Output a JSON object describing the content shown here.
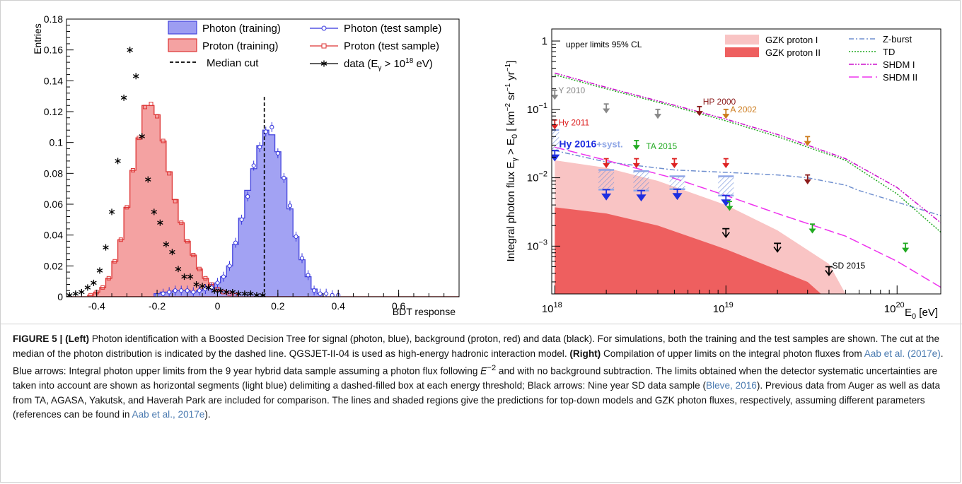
{
  "left_chart": {
    "chart_data": {
      "type": "bar",
      "xlabel": "BDT response",
      "ylabel": "Entries",
      "xlim": [
        -0.5,
        0.8
      ],
      "ylim": [
        0,
        0.18
      ],
      "x_ticks": [
        "-0.4",
        "-0.2",
        "0",
        "0.2",
        "0.4",
        "0.6"
      ],
      "y_ticks": [
        "0",
        "0.02",
        "0.04",
        "0.06",
        "0.08",
        "0.1",
        "0.12",
        "0.14",
        "0.16",
        "0.18"
      ],
      "median_cut_x": 0.155,
      "series": [
        {
          "name": "Photon (training)",
          "color": "#4444dd",
          "fill": "#9d9df2",
          "x": [
            -0.2,
            -0.18,
            -0.16,
            -0.14,
            -0.12,
            -0.1,
            -0.08,
            -0.06,
            -0.04,
            -0.02,
            0,
            0.02,
            0.04,
            0.06,
            0.08,
            0.1,
            0.12,
            0.14,
            0.16,
            0.18,
            0.2,
            0.22,
            0.24,
            0.26,
            0.28,
            0.3,
            0.32,
            0.34
          ],
          "values": [
            0.002,
            0.003,
            0.003,
            0.004,
            0.004,
            0.004,
            0.003,
            0.004,
            0.005,
            0.006,
            0.009,
            0.013,
            0.02,
            0.034,
            0.051,
            0.069,
            0.083,
            0.098,
            0.108,
            0.105,
            0.094,
            0.077,
            0.057,
            0.039,
            0.024,
            0.013,
            0.005,
            0.002
          ]
        },
        {
          "name": "Photon (test sample)",
          "color": "#3333dd",
          "x": [
            -0.2,
            -0.18,
            -0.16,
            -0.14,
            -0.12,
            -0.1,
            -0.08,
            -0.06,
            -0.04,
            -0.02,
            0,
            0.02,
            0.04,
            0.06,
            0.08,
            0.1,
            0.12,
            0.14,
            0.16,
            0.18,
            0.2,
            0.22,
            0.24,
            0.26,
            0.28,
            0.3,
            0.32,
            0.34,
            0.36,
            0.38,
            0.4
          ],
          "values": [
            0.001,
            0.002,
            0.003,
            0.004,
            0.004,
            0.004,
            0.003,
            0.004,
            0.005,
            0.006,
            0.009,
            0.013,
            0.02,
            0.035,
            0.05,
            0.065,
            0.085,
            0.097,
            0.107,
            0.11,
            0.093,
            0.077,
            0.059,
            0.039,
            0.025,
            0.014,
            0.004,
            0.002,
            0.002,
            0.001,
            0.001
          ]
        },
        {
          "name": "Proton (training)",
          "color": "#dd3333",
          "fill": "#f4a2a2",
          "x": [
            -0.42,
            -0.4,
            -0.38,
            -0.36,
            -0.34,
            -0.32,
            -0.3,
            -0.28,
            -0.26,
            -0.24,
            -0.22,
            -0.2,
            -0.18,
            -0.16,
            -0.14,
            -0.12,
            -0.1,
            -0.08,
            -0.06,
            -0.04,
            -0.02,
            0,
            0.02,
            0.04,
            0.06
          ],
          "values": [
            0.001,
            0.003,
            0.006,
            0.012,
            0.023,
            0.037,
            0.058,
            0.082,
            0.103,
            0.124,
            0.124,
            0.118,
            0.101,
            0.081,
            0.063,
            0.048,
            0.036,
            0.027,
            0.018,
            0.012,
            0.008,
            0.005,
            0.003,
            0.002,
            0.001
          ]
        },
        {
          "name": "Proton (test sample)",
          "color": "#dd3333",
          "x": [
            -0.42,
            -0.4,
            -0.38,
            -0.36,
            -0.34,
            -0.32,
            -0.3,
            -0.28,
            -0.26,
            -0.24,
            -0.22,
            -0.2,
            -0.18,
            -0.16,
            -0.14,
            -0.12,
            -0.1,
            -0.08,
            -0.06,
            -0.04,
            -0.02,
            0,
            0.02,
            0.04,
            0.06
          ],
          "values": [
            0.001,
            0.003,
            0.006,
            0.012,
            0.023,
            0.037,
            0.058,
            0.082,
            0.103,
            0.123,
            0.125,
            0.117,
            0.101,
            0.08,
            0.062,
            0.048,
            0.036,
            0.027,
            0.018,
            0.012,
            0.008,
            0.005,
            0.003,
            0.002,
            0.001
          ]
        },
        {
          "name": "data (E",
          "name_sub": "γ",
          "name_tail": " > 10",
          "name_sup": "18",
          "name_end": " eV)",
          "color": "#000000",
          "x": [
            -0.49,
            -0.47,
            -0.45,
            -0.43,
            -0.41,
            -0.39,
            -0.37,
            -0.35,
            -0.33,
            -0.31,
            -0.29,
            -0.27,
            -0.25,
            -0.23,
            -0.21,
            -0.19,
            -0.17,
            -0.15,
            -0.13,
            -0.11,
            -0.09,
            -0.07,
            -0.05,
            -0.03,
            -0.01,
            0.01,
            0.03,
            0.05,
            0.07,
            0.09,
            0.11,
            0.13,
            0.15
          ],
          "values": [
            0.001,
            0.002,
            0.003,
            0.006,
            0.009,
            0.017,
            0.032,
            0.055,
            0.088,
            0.129,
            0.16,
            0.143,
            0.104,
            0.076,
            0.055,
            0.048,
            0.034,
            0.029,
            0.018,
            0.013,
            0.013,
            0.008,
            0.007,
            0.006,
            0.004,
            0.004,
            0.003,
            0.003,
            0.002,
            0.002,
            0.002,
            0.001,
            0.001
          ]
        }
      ],
      "legend": {
        "placement": "top-right",
        "median_label": "Median cut"
      }
    }
  },
  "right_chart": {
    "chart_data": {
      "type": "line",
      "xlabel": "E",
      "xlabel_sub": "0",
      "xlabel_unit": " [eV]",
      "ylabel_parts": [
        "Integral photon flux E",
        "γ",
        " > E",
        "0",
        " [ km",
        "−2",
        " sr",
        "−1",
        " yr",
        "−1",
        "]"
      ],
      "x_scale": "log",
      "y_scale": "log",
      "xlim": [
        9.6e+17,
        1.8e+20
      ],
      "ylim": [
        0.0002,
        1.5
      ],
      "x_ticks": [
        {
          "base": "10",
          "exp": "18"
        },
        {
          "base": "10",
          "exp": "19"
        },
        {
          "base": "10",
          "exp": "20"
        }
      ],
      "y_ticks": [
        {
          "base": "10",
          "exp": "−3"
        },
        {
          "base": "10",
          "exp": "−2"
        },
        {
          "base": "10",
          "exp": "−1"
        },
        {
          "base": "1",
          "exp": ""
        }
      ],
      "annotation": "upper limits 95% CL",
      "shaded_regions": [
        {
          "name": "GZK proton I",
          "color": "#f9c4c4",
          "upper": [
            [
              1e+18,
              0.018
            ],
            [
              2e+18,
              0.014
            ],
            [
              4e+18,
              0.009
            ],
            [
              1e+19,
              0.004
            ],
            [
              2e+19,
              0.0017
            ],
            [
              4e+19,
              0.00055
            ],
            [
              5e+19,
              0.0002
            ]
          ],
          "lower": [
            [
              1e+18,
              0.0003
            ],
            [
              2e+18,
              0.0003
            ],
            [
              5e+18,
              0.0003
            ],
            [
              1e+19,
              0.00028
            ],
            [
              2e+19,
              0.00025
            ],
            [
              3e+19,
              0.0002
            ]
          ]
        },
        {
          "name": "GZK proton II",
          "color": "#ee5f5f",
          "upper": [
            [
              1e+18,
              0.0037
            ],
            [
              2e+18,
              0.003
            ],
            [
              4e+18,
              0.002
            ],
            [
              1e+19,
              0.0009
            ],
            [
              2e+19,
              0.00045
            ],
            [
              3e+19,
              0.0003
            ],
            [
              3.6e+19,
              0.0002
            ]
          ],
          "lower": [
            [
              1e+18,
              0.0002
            ],
            [
              3.6e+19,
              0.0002
            ]
          ]
        }
      ],
      "series": [
        {
          "name": "Z-burst",
          "color": "#6f8fcf",
          "dash": "7,3,2,3",
          "x": [
            1e+18,
            2e+18,
            5e+18,
            1e+19,
            2e+19,
            3e+19,
            5e+19,
            6e+19,
            1e+20,
            1.8e+20
          ],
          "y": [
            0.025,
            0.017,
            0.013,
            0.012,
            0.011,
            0.01,
            0.0078,
            0.0065,
            0.0044,
            0.0028
          ]
        },
        {
          "name": "TD",
          "color": "#22aa22",
          "dash": "2,2",
          "x": [
            1e+18,
            2e+18,
            5e+18,
            1e+19,
            2e+19,
            5e+19,
            1e+20,
            1.8e+20
          ],
          "y": [
            0.32,
            0.2,
            0.11,
            0.068,
            0.04,
            0.018,
            0.0058,
            0.0016
          ]
        },
        {
          "name": "SHDM I",
          "color": "#cc11cc",
          "dash": "7,2,2,2,2,2",
          "x": [
            1e+18,
            2e+18,
            5e+18,
            1e+19,
            2e+19,
            5e+19,
            1e+20,
            1.8e+20
          ],
          "y": [
            0.34,
            0.21,
            0.115,
            0.072,
            0.043,
            0.019,
            0.0072,
            0.0022
          ]
        },
        {
          "name": "SHDM II",
          "color": "#ee33ee",
          "dash": "14,5",
          "x": [
            1e+18,
            2e+18,
            5e+18,
            1e+19,
            2e+19,
            5e+19,
            1e+20,
            1.8e+20
          ],
          "y": [
            0.028,
            0.018,
            0.0098,
            0.0055,
            0.003,
            0.0014,
            0.0006,
            0.00025
          ]
        }
      ],
      "limit_labels": [
        {
          "text": "Y 2010",
          "color": "#888888",
          "x": 1.03e+18,
          "y": 0.19
        },
        {
          "text": "HP 2000",
          "color": "#8b1a1a",
          "x": 7.2e+18,
          "y": 0.13
        },
        {
          "text": "A 2002",
          "color": "#cc7a1a",
          "x": 1.04e+19,
          "y": 0.1
        },
        {
          "text": "Hy 2011",
          "color": "#dd2222",
          "x": 1.03e+18,
          "y": 0.064
        },
        {
          "text": "TA 2015",
          "color": "#22aa22",
          "x": 3.35e+18,
          "y": 0.029
        },
        {
          "text": "SD 2015",
          "color": "#000000",
          "x": 4.1e+19,
          "y": 0.00052
        }
      ],
      "hy2016_label": "Hy 2016",
      "hy2016_syst": "+syst.",
      "arrows": [
        {
          "x": 1e+18,
          "y": 0.19,
          "color": "#888888"
        },
        {
          "x": 2e+18,
          "y": 0.12,
          "color": "#888888"
        },
        {
          "x": 4e+18,
          "y": 0.1,
          "color": "#888888"
        },
        {
          "x": 7e+18,
          "y": 0.11,
          "color": "#8b1a1a"
        },
        {
          "x": 1e+19,
          "y": 0.1,
          "color": "#cc7a1a"
        },
        {
          "x": 3e+19,
          "y": 0.04,
          "color": "#cc7a1a"
        },
        {
          "x": 1e+18,
          "y": 0.07,
          "color": "#dd2222"
        },
        {
          "x": 2e+18,
          "y": 0.019,
          "color": "#dd2222"
        },
        {
          "x": 3e+18,
          "y": 0.019,
          "color": "#dd2222"
        },
        {
          "x": 5e+18,
          "y": 0.019,
          "color": "#dd2222"
        },
        {
          "x": 1e+19,
          "y": 0.019,
          "color": "#dd2222"
        },
        {
          "x": 3e+18,
          "y": 0.035,
          "color": "#22aa22"
        },
        {
          "x": 1.05e+19,
          "y": 0.0045,
          "color": "#22aa22"
        },
        {
          "x": 3.2e+19,
          "y": 0.0021,
          "color": "#22aa22"
        },
        {
          "x": 1.12e+20,
          "y": 0.0011,
          "color": "#22aa22"
        },
        {
          "x": 3e+19,
          "y": 0.011,
          "color": "#8b1a1a"
        }
      ],
      "hy2016_limits": [
        {
          "x": 1e+18,
          "y": 0.025,
          "syst_hi": 0.05,
          "syst_lo": 0.025
        },
        {
          "x": 2e+18,
          "y": 0.0067,
          "syst_hi": 0.013,
          "syst_lo": 0.0067
        },
        {
          "x": 3.2e+18,
          "y": 0.0065,
          "syst_hi": 0.0125,
          "syst_lo": 0.0065
        },
        {
          "x": 5.2e+18,
          "y": 0.0068,
          "syst_hi": 0.0105,
          "syst_lo": 0.0068
        },
        {
          "x": 1e+19,
          "y": 0.0055,
          "syst_hi": 0.0105,
          "syst_lo": 0.0055
        }
      ],
      "sd2015_limits": [
        {
          "x": 1e+19,
          "y": 0.0018
        },
        {
          "x": 2e+19,
          "y": 0.0011
        },
        {
          "x": 4e+19,
          "y": 0.0005
        }
      ]
    }
  },
  "caption": {
    "label": "FIGURE 5 |",
    "left_bold": "(Left)",
    "left_text": " Photon identification with a Boosted Decision Tree for signal (photon, blue), background (proton, red) and data (black). For simulations, both the training and the test samples are shown. The cut at the median of the photon distribution is indicated by the dashed line. QGSJET-II-04 is used as high-energy hadronic interaction model. ",
    "right_bold": "(Right)",
    "right_text1": " Compilation of upper limits on the integral photon fluxes from ",
    "ref1": "Aab et al. (2017e)",
    "right_text2": ". Blue arrows: Integral photon upper limits from the 9 year hybrid data sample assuming a photon flux following ",
    "formula_base": "E",
    "formula_exp": "−2",
    "right_text3": " and with no background subtraction. The limits obtained when the detector systematic uncertainties are taken into account are shown as horizontal segments (light blue) delimiting a dashed-filled box at each energy threshold; Black arrows: Nine year SD data sample (",
    "ref2": "Bleve, 2016",
    "right_text4": "). Previous data from Auger as well as data from TA, AGASA, Yakutsk, and Haverah Park are included for comparison. The lines and shaded regions give the predictions for top-down models and GZK photon fluxes, respectively, assuming different parameters (references can be found in ",
    "ref3": "Aab et al., 2017e",
    "right_text5": ")."
  }
}
